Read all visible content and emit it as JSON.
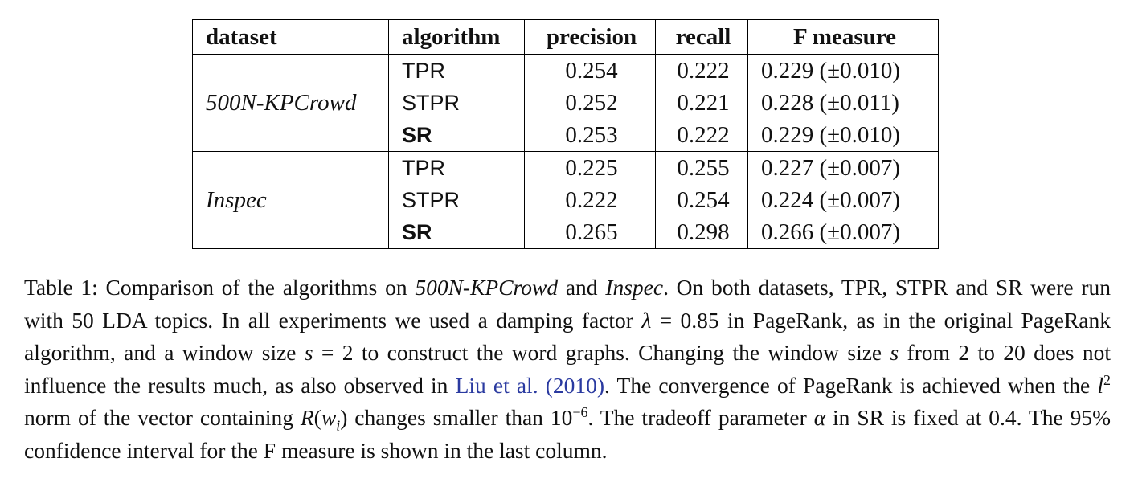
{
  "table": {
    "headers": [
      "dataset",
      "algorithm",
      "precision",
      "recall",
      "F measure"
    ],
    "groups": [
      {
        "dataset": "500N-KPCrowd",
        "rows": [
          {
            "algorithm": "TPR",
            "bold": false,
            "precision": "0.254",
            "recall": "0.222",
            "f_measure": "0.229 (±0.010)"
          },
          {
            "algorithm": "STPR",
            "bold": false,
            "precision": "0.252",
            "recall": "0.221",
            "f_measure": "0.228 (±0.011)"
          },
          {
            "algorithm": "SR",
            "bold": true,
            "precision": "0.253",
            "recall": "0.222",
            "f_measure": "0.229 (±0.010)"
          }
        ]
      },
      {
        "dataset": "Inspec",
        "rows": [
          {
            "algorithm": "TPR",
            "bold": false,
            "precision": "0.225",
            "recall": "0.255",
            "f_measure": "0.227 (±0.007)"
          },
          {
            "algorithm": "STPR",
            "bold": false,
            "precision": "0.222",
            "recall": "0.254",
            "f_measure": "0.224 (±0.007)"
          },
          {
            "algorithm": "SR",
            "bold": true,
            "precision": "0.265",
            "recall": "0.298",
            "f_measure": "0.266 (±0.007)"
          }
        ]
      }
    ]
  },
  "caption": {
    "p01": "Table 1: Comparison of the algorithms on ",
    "p02": "500N-KPCrowd",
    "p03": " and ",
    "p04": "Inspec",
    "p05": ". On both datasets, TPR, STPR and SR were run with 50 LDA topics. In all experiments we used a damping factor ",
    "p06": "λ",
    "p07": " = 0.85 in PageRank, as in the original PageRank algorithm, and a window size ",
    "p08": "s",
    "p09": " = 2 to construct the word graphs. Changing the window size ",
    "p10": "s",
    "p11": " from 2 to 20 does not influence the results much, as also observed in ",
    "p12": "Liu et al. (2010)",
    "p13": ". The convergence of PageRank is achieved when the ",
    "p14": "l",
    "p15": "2",
    "p16": " norm of the vector containing ",
    "p17": "R",
    "p18": "(",
    "p19": "w",
    "p20": "i",
    "p21": ") changes smaller than 10",
    "p22": "−6",
    "p23": ". The tradeoff parameter ",
    "p24": "α",
    "p25": " in SR is fixed at 0.4. The 95% confidence interval for the F measure is shown in the last column."
  }
}
